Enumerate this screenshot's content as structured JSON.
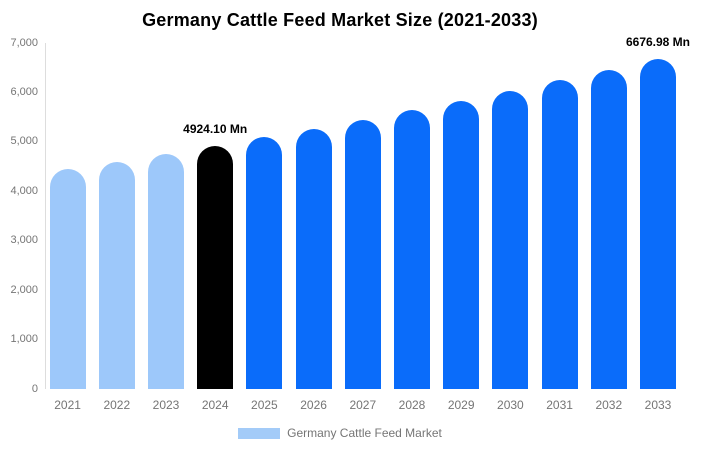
{
  "title": "Germany Cattle Feed Market Size (2021-2033)",
  "legend": {
    "label": "Germany Cattle Feed Market",
    "swatch_color": "#a3cbf8"
  },
  "colors": {
    "historical_bar": "#9dc8fa",
    "base_year_bar": "#000000",
    "forecast_bar": "#0a6cfa",
    "axis_line": "#dddddd",
    "tick_text": "#757575",
    "annotation_text": "#000000",
    "background": "#ffffff"
  },
  "chart_data": {
    "type": "bar",
    "title": "Germany Cattle Feed Market Size (2021-2033)",
    "unit": "Mn",
    "categories": [
      "2021",
      "2022",
      "2023",
      "2024",
      "2025",
      "2026",
      "2027",
      "2028",
      "2029",
      "2030",
      "2031",
      "2032",
      "2033"
    ],
    "values": [
      4447,
      4601,
      4760,
      4924.1,
      5094,
      5270,
      5452,
      5640,
      5834,
      6036,
      6244,
      6459,
      6676.98
    ],
    "bar_colors": [
      "#9dc8fa",
      "#9dc8fa",
      "#9dc8fa",
      "#000000",
      "#0a6cfa",
      "#0a6cfa",
      "#0a6cfa",
      "#0a6cfa",
      "#0a6cfa",
      "#0a6cfa",
      "#0a6cfa",
      "#0a6cfa",
      "#0a6cfa"
    ],
    "annotations": [
      {
        "category": "2024",
        "text": "4924.10 Mn"
      },
      {
        "category": "2033",
        "text": "6676.98 Mn"
      }
    ],
    "xlabel": "",
    "ylabel": "",
    "ylim": [
      0,
      7000
    ],
    "yticks": [
      {
        "value": 0,
        "label": "0"
      },
      {
        "value": 1000,
        "label": "1,000"
      },
      {
        "value": 2000,
        "label": "2,000"
      },
      {
        "value": 3000,
        "label": "3,000"
      },
      {
        "value": 4000,
        "label": "4,000"
      },
      {
        "value": 5000,
        "label": "5,000"
      },
      {
        "value": 6000,
        "label": "6,000"
      },
      {
        "value": 7000,
        "label": "7,000"
      }
    ],
    "grid": false,
    "legend_position": "bottom"
  }
}
